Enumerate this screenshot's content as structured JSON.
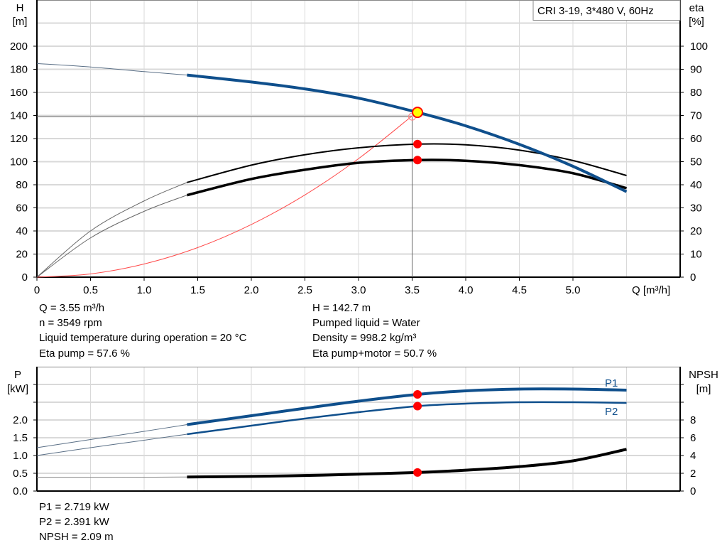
{
  "chart_data": [
    {
      "type": "line",
      "legend_box": "CRI 3-19, 3*480 V, 60Hz",
      "xlabel": "Q [m³/h]",
      "ylabel_left": [
        "H",
        "[m]"
      ],
      "ylabel_right": [
        "eta",
        "[%]"
      ],
      "xlim": [
        0,
        6
      ],
      "ylim_left": [
        0,
        240
      ],
      "ylim_right": [
        0,
        120
      ],
      "grid": true,
      "x_ticks": [
        "0",
        "0.5",
        "1.0",
        "1.5",
        "2.0",
        "2.5",
        "3.0",
        "3.5",
        "4.0",
        "4.5",
        "5.0"
      ],
      "y_left_ticks": [
        "0",
        "20",
        "40",
        "60",
        "80",
        "100",
        "120",
        "140",
        "160",
        "180",
        "200"
      ],
      "y_right_ticks": [
        "0",
        "10",
        "20",
        "30",
        "40",
        "50",
        "60",
        "70",
        "80",
        "90",
        "100"
      ],
      "colors": {
        "head": "#0f4f8c",
        "eta": "#000000",
        "system": "#ff4a4a",
        "marker": "#ff0000",
        "duty": "#ffff00"
      },
      "series": [
        {
          "key": "head",
          "axis": "left",
          "thin_until": 1.4,
          "x": [
            0,
            0.5,
            1.0,
            1.4,
            2.0,
            2.5,
            3.0,
            3.55,
            4.0,
            4.5,
            5.0,
            5.5
          ],
          "y": [
            185,
            182,
            178,
            175,
            169,
            163,
            155,
            142.7,
            131,
            115,
            96,
            74
          ]
        },
        {
          "key": "eta_pump",
          "axis": "right",
          "thin_until": 1.4,
          "x": [
            0,
            0.5,
            1.0,
            1.4,
            2.0,
            2.5,
            3.0,
            3.55,
            4.0,
            4.5,
            5.0,
            5.5
          ],
          "y": [
            0,
            20,
            33,
            41,
            48.5,
            53,
            56,
            57.6,
            57.3,
            55,
            50.5,
            44
          ]
        },
        {
          "key": "eta_pump_motor",
          "axis": "right",
          "thin_until": 1.4,
          "x": [
            0,
            0.5,
            1.0,
            1.4,
            2.0,
            2.5,
            3.0,
            3.55,
            4.0,
            4.5,
            5.0,
            5.5
          ],
          "y": [
            0,
            17,
            28.5,
            35.5,
            42.5,
            46.5,
            49.5,
            50.7,
            50.4,
            48.5,
            45,
            38.5
          ]
        },
        {
          "key": "system",
          "axis": "left",
          "x": [
            0,
            0.5,
            1.0,
            1.5,
            2.0,
            2.5,
            3.0,
            3.5
          ],
          "y": [
            0,
            2.8,
            11.4,
            25.6,
            45.6,
            71.2,
            102.6,
            139.6
          ]
        }
      ],
      "duty_point": {
        "q": 3.55,
        "h": 142.7,
        "eta_pump": 57.6,
        "eta_pump_motor": 50.7
      },
      "reference_lines": {
        "q": 3.5,
        "h": 139
      }
    },
    {
      "type": "line",
      "ylabel_left": [
        "P",
        "[kW]"
      ],
      "ylabel_right": [
        "NPSH",
        "[m]"
      ],
      "xlim": [
        0,
        6
      ],
      "ylim_left": [
        0,
        3.5
      ],
      "ylim_right": [
        0,
        14
      ],
      "grid": true,
      "y_left_ticks": [
        "0.0",
        "0.5",
        "1.0",
        "1.5",
        "2.0"
      ],
      "y_right_ticks": [
        "0",
        "2",
        "4",
        "6",
        "8"
      ],
      "series": [
        {
          "key": "P1",
          "name": "P1",
          "axis": "left",
          "thin_until": 1.4,
          "x": [
            0,
            0.5,
            1.0,
            1.4,
            2.0,
            2.5,
            3.0,
            3.55,
            4.0,
            4.5,
            5.0,
            5.5
          ],
          "y": [
            1.22,
            1.45,
            1.68,
            1.87,
            2.12,
            2.33,
            2.53,
            2.719,
            2.82,
            2.87,
            2.87,
            2.84
          ]
        },
        {
          "key": "P2",
          "name": "P2",
          "axis": "left",
          "thin_until": 1.4,
          "x": [
            0,
            0.5,
            1.0,
            1.4,
            2.0,
            2.5,
            3.0,
            3.55,
            4.0,
            4.5,
            5.0,
            5.5
          ],
          "y": [
            1.0,
            1.22,
            1.43,
            1.6,
            1.84,
            2.04,
            2.22,
            2.391,
            2.46,
            2.5,
            2.5,
            2.48
          ]
        },
        {
          "key": "NPSH",
          "axis": "right",
          "thin_until": 1.4,
          "x": [
            0,
            0.5,
            1.0,
            1.4,
            2.0,
            2.5,
            3.0,
            3.55,
            4.0,
            4.5,
            5.0,
            5.5
          ],
          "y": [
            1.55,
            1.55,
            1.56,
            1.58,
            1.65,
            1.75,
            1.9,
            2.09,
            2.35,
            2.75,
            3.4,
            4.7
          ]
        }
      ],
      "duty_point": {
        "q": 3.55,
        "P1": 2.719,
        "P2": 2.391,
        "NPSH": 2.09
      }
    }
  ],
  "info": {
    "left": [
      "Q = 3.55 m³/h",
      "n = 3549 rpm",
      "Liquid temperature during operation = 20 °C",
      "Eta pump = 57.6 %"
    ],
    "right": [
      "H = 142.7 m",
      "Pumped liquid = Water",
      "Density = 998.2 kg/m³",
      "Eta pump+motor = 50.7 %"
    ],
    "power": [
      "P1 = 2.719 kW",
      "P2 = 2.391 kW",
      "NPSH = 2.09 m"
    ]
  }
}
